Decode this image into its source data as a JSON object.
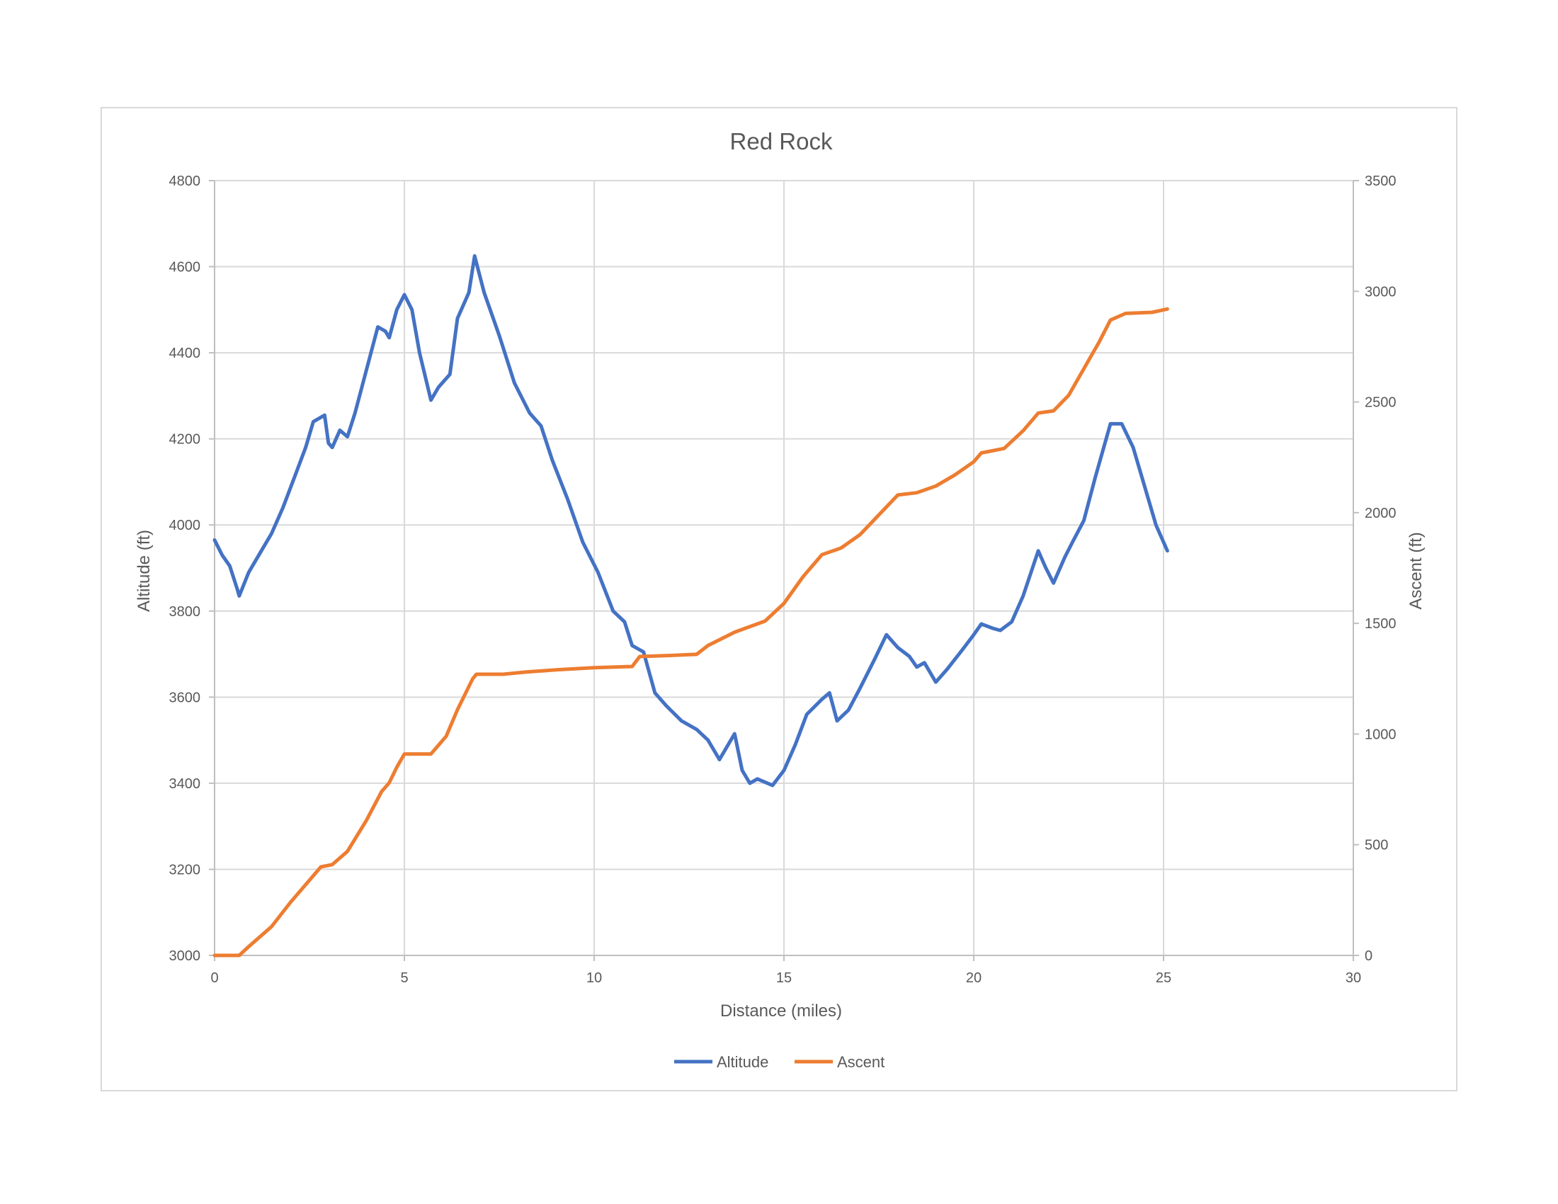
{
  "chart_data": {
    "type": "line",
    "title": "Red Rock",
    "xlabel": "Distance (miles)",
    "ylabel_left": "Altitude (ft)",
    "ylabel_right": "Ascent (ft)",
    "xlim": [
      0,
      30
    ],
    "ylim_left": [
      3000,
      4800
    ],
    "ylim_right": [
      0,
      3500
    ],
    "x_ticks": [
      "0",
      "5",
      "10",
      "15",
      "20",
      "25",
      "30"
    ],
    "y_left_ticks": [
      "3000",
      "3200",
      "3400",
      "3600",
      "3800",
      "4000",
      "4200",
      "4400",
      "4600",
      "4800"
    ],
    "y_right_ticks": [
      "0",
      "500",
      "1000",
      "1500",
      "2000",
      "2500",
      "3000",
      "3500"
    ],
    "grid": true,
    "legend_position": "bottom",
    "series": [
      {
        "name": "Altitude",
        "axis": "left",
        "color": "#4472c4",
        "points": [
          [
            0,
            3965
          ],
          [
            0.2,
            3930
          ],
          [
            0.4,
            3905
          ],
          [
            0.6,
            3850
          ],
          [
            0.65,
            3835
          ],
          [
            0.9,
            3890
          ],
          [
            1.2,
            3935
          ],
          [
            1.5,
            3980
          ],
          [
            1.8,
            4040
          ],
          [
            2.1,
            4110
          ],
          [
            2.4,
            4180
          ],
          [
            2.6,
            4240
          ],
          [
            2.9,
            4255
          ],
          [
            3.0,
            4190
          ],
          [
            3.1,
            4180
          ],
          [
            3.3,
            4220
          ],
          [
            3.5,
            4205
          ],
          [
            3.7,
            4260
          ],
          [
            4.0,
            4360
          ],
          [
            4.3,
            4460
          ],
          [
            4.5,
            4450
          ],
          [
            4.6,
            4435
          ],
          [
            4.8,
            4500
          ],
          [
            5.0,
            4535
          ],
          [
            5.2,
            4500
          ],
          [
            5.4,
            4400
          ],
          [
            5.7,
            4290
          ],
          [
            5.9,
            4320
          ],
          [
            6.2,
            4350
          ],
          [
            6.4,
            4480
          ],
          [
            6.7,
            4540
          ],
          [
            6.85,
            4625
          ],
          [
            7.1,
            4540
          ],
          [
            7.5,
            4440
          ],
          [
            7.9,
            4330
          ],
          [
            8.3,
            4260
          ],
          [
            8.6,
            4230
          ],
          [
            8.9,
            4150
          ],
          [
            9.3,
            4060
          ],
          [
            9.7,
            3960
          ],
          [
            10.1,
            3890
          ],
          [
            10.5,
            3800
          ],
          [
            10.8,
            3775
          ],
          [
            11.0,
            3720
          ],
          [
            11.3,
            3705
          ],
          [
            11.6,
            3610
          ],
          [
            11.9,
            3580
          ],
          [
            12.3,
            3545
          ],
          [
            12.7,
            3525
          ],
          [
            13.0,
            3500
          ],
          [
            13.3,
            3455
          ],
          [
            13.7,
            3515
          ],
          [
            13.9,
            3430
          ],
          [
            14.1,
            3400
          ],
          [
            14.3,
            3410
          ],
          [
            14.7,
            3395
          ],
          [
            15.0,
            3430
          ],
          [
            15.3,
            3490
          ],
          [
            15.6,
            3560
          ],
          [
            16.0,
            3595
          ],
          [
            16.2,
            3610
          ],
          [
            16.4,
            3545
          ],
          [
            16.7,
            3570
          ],
          [
            17.0,
            3620
          ],
          [
            17.4,
            3690
          ],
          [
            17.7,
            3745
          ],
          [
            18.0,
            3715
          ],
          [
            18.3,
            3695
          ],
          [
            18.5,
            3670
          ],
          [
            18.7,
            3680
          ],
          [
            19.0,
            3635
          ],
          [
            19.3,
            3665
          ],
          [
            19.7,
            3710
          ],
          [
            20.0,
            3745
          ],
          [
            20.2,
            3770
          ],
          [
            20.5,
            3760
          ],
          [
            20.7,
            3755
          ],
          [
            21.0,
            3775
          ],
          [
            21.3,
            3835
          ],
          [
            21.7,
            3940
          ],
          [
            21.9,
            3900
          ],
          [
            22.1,
            3865
          ],
          [
            22.4,
            3925
          ],
          [
            22.6,
            3960
          ],
          [
            22.9,
            4010
          ],
          [
            23.2,
            4110
          ],
          [
            23.6,
            4235
          ],
          [
            23.9,
            4235
          ],
          [
            24.2,
            4180
          ],
          [
            24.5,
            4090
          ],
          [
            24.8,
            4000
          ],
          [
            25.1,
            3940
          ]
        ]
      },
      {
        "name": "Ascent",
        "axis": "right",
        "color": "#ed7d31",
        "points": [
          [
            0,
            0
          ],
          [
            0.65,
            0
          ],
          [
            0.9,
            40
          ],
          [
            1.5,
            130
          ],
          [
            2.0,
            240
          ],
          [
            2.6,
            360
          ],
          [
            2.8,
            400
          ],
          [
            3.1,
            410
          ],
          [
            3.5,
            470
          ],
          [
            4.0,
            610
          ],
          [
            4.4,
            740
          ],
          [
            4.6,
            780
          ],
          [
            4.8,
            850
          ],
          [
            5.0,
            910
          ],
          [
            5.7,
            910
          ],
          [
            6.1,
            990
          ],
          [
            6.4,
            1110
          ],
          [
            6.8,
            1250
          ],
          [
            6.9,
            1270
          ],
          [
            7.6,
            1270
          ],
          [
            8.2,
            1280
          ],
          [
            9.0,
            1290
          ],
          [
            10.0,
            1300
          ],
          [
            11.0,
            1305
          ],
          [
            11.2,
            1350
          ],
          [
            12.0,
            1355
          ],
          [
            12.7,
            1360
          ],
          [
            13.0,
            1400
          ],
          [
            13.7,
            1460
          ],
          [
            14.5,
            1510
          ],
          [
            15.0,
            1590
          ],
          [
            15.5,
            1710
          ],
          [
            16.0,
            1810
          ],
          [
            16.5,
            1840
          ],
          [
            17.0,
            1900
          ],
          [
            17.5,
            1990
          ],
          [
            18.0,
            2080
          ],
          [
            18.5,
            2090
          ],
          [
            19.0,
            2120
          ],
          [
            19.5,
            2170
          ],
          [
            20.0,
            2230
          ],
          [
            20.2,
            2270
          ],
          [
            20.8,
            2290
          ],
          [
            21.3,
            2370
          ],
          [
            21.7,
            2450
          ],
          [
            22.1,
            2460
          ],
          [
            22.5,
            2530
          ],
          [
            22.9,
            2650
          ],
          [
            23.3,
            2770
          ],
          [
            23.6,
            2870
          ],
          [
            24.0,
            2900
          ],
          [
            24.7,
            2905
          ],
          [
            25.1,
            2920
          ]
        ]
      }
    ]
  }
}
